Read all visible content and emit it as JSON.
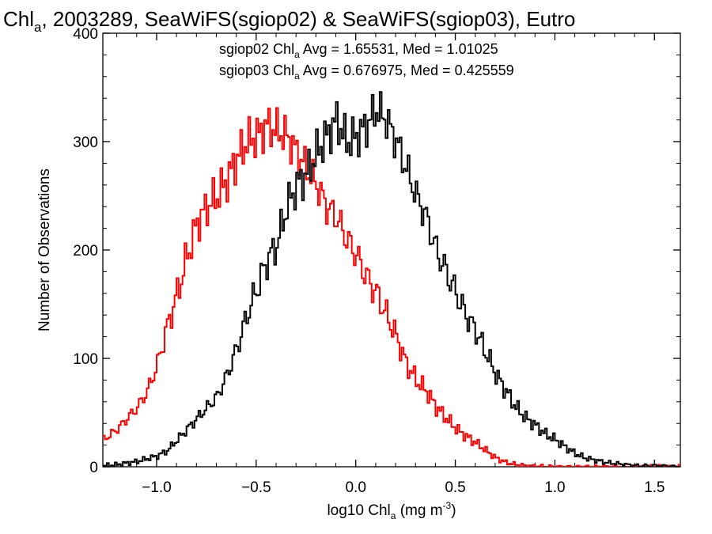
{
  "chart_data": {
    "type": "line",
    "title": {
      "pre": "Chl",
      "sub": "a",
      "post": ", 2003289, SeaWiFS(sgiop02) & SeaWiFS(sgiop03), Eutro"
    },
    "xlabel": {
      "pre": "log10 Chl",
      "sub": "a",
      "mid": " (mg m",
      "sup": "-3",
      "post": ")"
    },
    "ylabel": "Number of Observations",
    "xlim": [
      -1.27,
      1.63
    ],
    "ylim": [
      0,
      400
    ],
    "x_ticks": [
      "-1.0",
      "-0.5",
      "0.0",
      "0.5",
      "1.0",
      "1.5"
    ],
    "y_ticks": [
      "0",
      "100",
      "200",
      "300",
      "400"
    ],
    "annotations": [
      {
        "pre": "sgiop02 Chl",
        "sub": "a",
        "post": " Avg = 1.65531, Med = 1.01025",
        "color": "#000000"
      },
      {
        "pre": "sgiop03 Chl",
        "sub": "a",
        "post": " Avg = 0.676975, Med = 0.425559",
        "color": "#ff0000"
      }
    ],
    "grid": false,
    "style": "step",
    "series": [
      {
        "color": "#000000",
        "x": [
          -1.27,
          -1.2,
          -1.1,
          -1.0,
          -0.95,
          -0.9,
          -0.85,
          -0.8,
          -0.75,
          -0.7,
          -0.65,
          -0.6,
          -0.55,
          -0.5,
          -0.45,
          -0.4,
          -0.35,
          -0.3,
          -0.25,
          -0.2,
          -0.15,
          -0.1,
          -0.05,
          0.0,
          0.05,
          0.1,
          0.15,
          0.2,
          0.25,
          0.3,
          0.35,
          0.4,
          0.45,
          0.5,
          0.55,
          0.6,
          0.65,
          0.7,
          0.75,
          0.8,
          0.85,
          0.9,
          0.95,
          1.0,
          1.05,
          1.1,
          1.15,
          1.2,
          1.25,
          1.3,
          1.35,
          1.4,
          1.5,
          1.63
        ],
        "y": [
          1,
          2,
          5,
          10,
          15,
          25,
          35,
          45,
          55,
          65,
          85,
          110,
          140,
          165,
          190,
          205,
          240,
          260,
          270,
          290,
          305,
          320,
          300,
          305,
          315,
          330,
          320,
          300,
          275,
          250,
          230,
          200,
          180,
          160,
          140,
          125,
          105,
          85,
          70,
          55,
          45,
          38,
          30,
          25,
          18,
          12,
          8,
          6,
          4,
          3,
          2,
          1,
          1,
          0
        ]
      },
      {
        "color": "#ff0000",
        "x": [
          -1.27,
          -1.2,
          -1.15,
          -1.1,
          -1.05,
          -1.0,
          -0.95,
          -0.9,
          -0.85,
          -0.8,
          -0.75,
          -0.7,
          -0.65,
          -0.6,
          -0.55,
          -0.5,
          -0.45,
          -0.4,
          -0.35,
          -0.3,
          -0.25,
          -0.2,
          -0.15,
          -0.1,
          -0.05,
          0.0,
          0.05,
          0.1,
          0.15,
          0.2,
          0.25,
          0.3,
          0.35,
          0.4,
          0.45,
          0.5,
          0.55,
          0.6,
          0.65,
          0.7,
          0.75,
          0.8,
          0.85,
          1.0,
          1.2,
          1.63
        ],
        "y": [
          25,
          35,
          45,
          55,
          70,
          95,
          130,
          160,
          195,
          225,
          240,
          250,
          265,
          285,
          300,
          305,
          315,
          310,
          305,
          290,
          275,
          260,
          240,
          230,
          210,
          195,
          175,
          160,
          140,
          120,
          95,
          80,
          70,
          55,
          45,
          35,
          28,
          22,
          15,
          8,
          4,
          2,
          1,
          0,
          0,
          0
        ]
      }
    ]
  }
}
